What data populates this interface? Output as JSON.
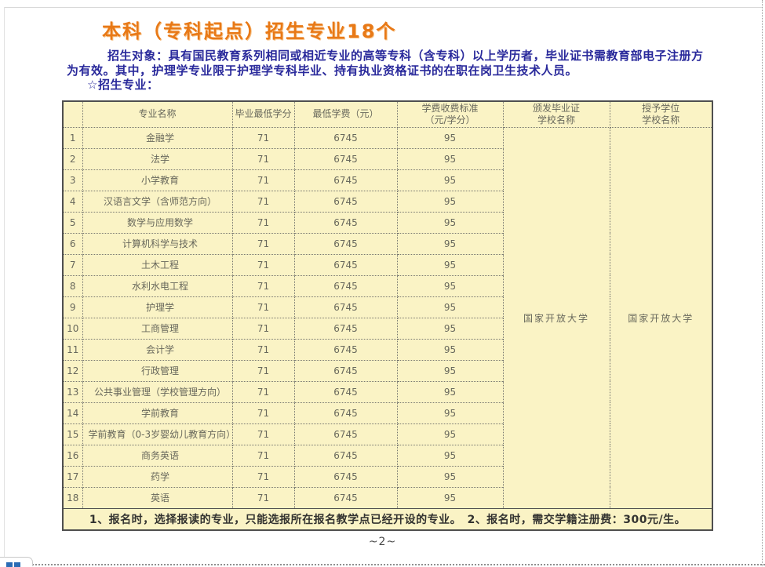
{
  "page": {
    "title": "本科（专科起点）招生专业18个",
    "intro_line1": "招生对象：具有国民教育系列相同或相近专业的高等专科（含专科）以上学历者，毕业证书需教育部电子注册方",
    "intro_line2": "为有效。其中，护理学专业限于护理学专科毕业、持有执业资格证书的在职在岗卫生技术人员。",
    "section_label": "☆招生专业：",
    "page_number": "~2~"
  },
  "colors": {
    "title_orange": "#e87917",
    "intro_blue": "#29299b",
    "table_background": "#faf3c5",
    "table_text": "#68685c",
    "corner_icon_blue": "#2a6cb5"
  },
  "table": {
    "headers": {
      "no": "",
      "name": "专业名称",
      "credits": "毕业最低学分",
      "tuition": "最低学费（元）",
      "fee": "学费收费标准\n（元/学分）",
      "diploma": "颁发毕业证\n学校名称",
      "degree": "授予学位\n学校名称"
    },
    "rows": [
      [
        "1",
        "金融学",
        "71",
        "6745",
        "95"
      ],
      [
        "2",
        "法学",
        "71",
        "6745",
        "95"
      ],
      [
        "3",
        "小学教育",
        "71",
        "6745",
        "95"
      ],
      [
        "4",
        "汉语言文学（含师范方向）",
        "71",
        "6745",
        "95"
      ],
      [
        "5",
        "数学与应用数学",
        "71",
        "6745",
        "95"
      ],
      [
        "6",
        "计算机科学与技术",
        "71",
        "6745",
        "95"
      ],
      [
        "7",
        "土木工程",
        "71",
        "6745",
        "95"
      ],
      [
        "8",
        "水利水电工程",
        "71",
        "6745",
        "95"
      ],
      [
        "9",
        "护理学",
        "71",
        "6745",
        "95"
      ],
      [
        "10",
        "工商管理",
        "71",
        "6745",
        "95"
      ],
      [
        "11",
        "会计学",
        "71",
        "6745",
        "95"
      ],
      [
        "12",
        "行政管理",
        "71",
        "6745",
        "95"
      ],
      [
        "13",
        "公共事业管理（学校管理方向）",
        "71",
        "6745",
        "95"
      ],
      [
        "14",
        "学前教育",
        "71",
        "6745",
        "95"
      ],
      [
        "15",
        "学前教育（0-3岁婴幼儿教育方向）",
        "71",
        "6745",
        "95"
      ],
      [
        "16",
        "商务英语",
        "71",
        "6745",
        "95"
      ],
      [
        "17",
        "药学",
        "71",
        "6745",
        "95"
      ],
      [
        "18",
        "英语",
        "71",
        "6745",
        "95"
      ]
    ],
    "diploma_school": "国家开放大学",
    "degree_school": "国家开放大学",
    "note": "1、报名时，选择报读的专业，只能选报所在报名教学点已经开设的专业。　2、报名时，需交学籍注册费：300元/生。"
  }
}
